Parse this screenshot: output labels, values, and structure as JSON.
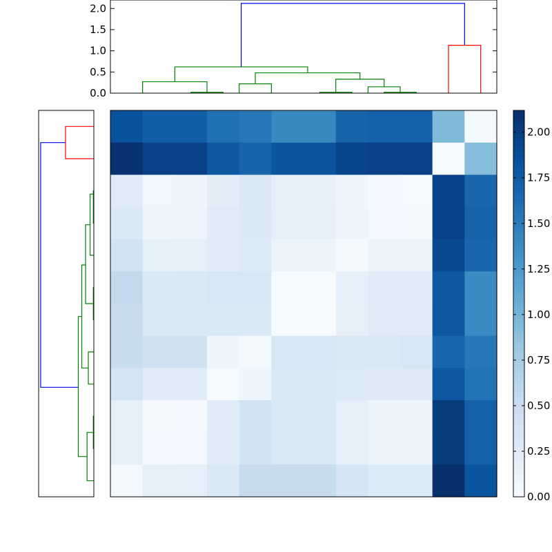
{
  "chart_data": [
    {
      "type": "heatmap",
      "title": "",
      "xlabel": "",
      "ylabel": "",
      "colormap": "Blues",
      "vmin": 0.0,
      "vmax": 2.12,
      "rows": 12,
      "cols": 12,
      "values": [
        [
          1.85,
          1.75,
          1.75,
          1.6,
          1.55,
          1.4,
          1.4,
          1.7,
          1.72,
          1.72,
          0.95,
          0.03
        ],
        [
          2.1,
          1.98,
          1.98,
          1.8,
          1.7,
          1.82,
          1.82,
          1.95,
          1.98,
          1.98,
          0.02,
          0.92
        ],
        [
          0.25,
          0.09,
          0.1,
          0.22,
          0.3,
          0.18,
          0.18,
          0.1,
          0.04,
          0.02,
          1.98,
          1.68
        ],
        [
          0.3,
          0.1,
          0.11,
          0.25,
          0.3,
          0.2,
          0.2,
          0.11,
          0.04,
          0.03,
          1.98,
          1.7
        ],
        [
          0.4,
          0.18,
          0.19,
          0.24,
          0.28,
          0.12,
          0.12,
          0.03,
          0.12,
          0.12,
          1.92,
          1.68
        ],
        [
          0.55,
          0.3,
          0.31,
          0.34,
          0.33,
          0.02,
          0.02,
          0.18,
          0.24,
          0.24,
          1.8,
          1.38
        ],
        [
          0.52,
          0.31,
          0.32,
          0.32,
          0.3,
          0.02,
          0.02,
          0.19,
          0.25,
          0.25,
          1.8,
          1.38
        ],
        [
          0.52,
          0.42,
          0.42,
          0.1,
          0.03,
          0.34,
          0.34,
          0.3,
          0.32,
          0.34,
          1.68,
          1.55
        ],
        [
          0.38,
          0.24,
          0.24,
          0.02,
          0.1,
          0.32,
          0.32,
          0.28,
          0.26,
          0.26,
          1.8,
          1.58
        ],
        [
          0.2,
          0.03,
          0.04,
          0.24,
          0.4,
          0.32,
          0.32,
          0.2,
          0.12,
          0.12,
          2.02,
          1.72
        ],
        [
          0.2,
          0.04,
          0.05,
          0.24,
          0.4,
          0.32,
          0.32,
          0.2,
          0.12,
          0.12,
          2.02,
          1.72
        ],
        [
          0.03,
          0.2,
          0.2,
          0.3,
          0.52,
          0.52,
          0.52,
          0.38,
          0.28,
          0.28,
          2.12,
          1.82
        ]
      ]
    },
    {
      "type": "dendrogram",
      "orientation": "top",
      "ylim": [
        0.0,
        2.2
      ],
      "yticks": [
        0.0,
        0.5,
        1.0,
        1.5,
        2.0
      ],
      "ytick_labels": [
        "0.0",
        "0.5",
        "1.0",
        "1.5",
        "2.0"
      ],
      "leaf_count": 12,
      "links": [
        {
          "xs": [
            2.5,
            2.5,
            3.5,
            3.5
          ],
          "ys": [
            0.0,
            0.02,
            0.02,
            0.0
          ],
          "color": "#008000"
        },
        {
          "xs": [
            1.0,
            1.0,
            3.0,
            3.0
          ],
          "ys": [
            0.0,
            0.27,
            0.27,
            0.0
          ],
          "color": "#008000"
        },
        {
          "xs": [
            4.0,
            4.0,
            5.0,
            5.0
          ],
          "ys": [
            0.0,
            0.22,
            0.22,
            0.0
          ],
          "color": "#008000"
        },
        {
          "xs": [
            6.5,
            6.5,
            7.5,
            7.5
          ],
          "ys": [
            0.0,
            0.02,
            0.02,
            0.0
          ],
          "color": "#008000"
        },
        {
          "xs": [
            8.5,
            8.5,
            9.5,
            9.5
          ],
          "ys": [
            0.0,
            0.02,
            0.02,
            0.0
          ],
          "color": "#008000"
        },
        {
          "xs": [
            8.0,
            8.0,
            9.0,
            9.0
          ],
          "ys": [
            0.0,
            0.15,
            0.15,
            0.02
          ],
          "color": "#008000"
        },
        {
          "xs": [
            7.0,
            7.0,
            8.5,
            8.5
          ],
          "ys": [
            0.02,
            0.33,
            0.33,
            0.15
          ],
          "color": "#008000"
        },
        {
          "xs": [
            4.5,
            4.5,
            7.75,
            7.75
          ],
          "ys": [
            0.22,
            0.48,
            0.48,
            0.33
          ],
          "color": "#008000"
        },
        {
          "xs": [
            2.0,
            2.0,
            6.125,
            6.125
          ],
          "ys": [
            0.27,
            0.62,
            0.62,
            0.48
          ],
          "color": "#008000"
        },
        {
          "xs": [
            10.5,
            10.5,
            11.5,
            11.5
          ],
          "ys": [
            0.0,
            1.13,
            1.13,
            0.0
          ],
          "color": "#ff0000"
        },
        {
          "xs": [
            4.0625,
            4.0625,
            11.0,
            11.0
          ],
          "ys": [
            0.62,
            2.12,
            2.12,
            1.13
          ],
          "color": "#0000ff"
        }
      ]
    },
    {
      "type": "dendrogram",
      "orientation": "left",
      "xlim": [
        2.2,
        0.0
      ],
      "leaf_count": 12,
      "links": [
        {
          "ys": [
            0.5,
            0.5,
            1.5,
            1.5
          ],
          "xs": [
            0.0,
            1.13,
            1.13,
            0.0
          ],
          "color": "#ff0000"
        },
        {
          "ys": [
            2.5,
            2.5,
            3.5,
            3.5
          ],
          "xs": [
            0.0,
            0.02,
            0.02,
            0.0
          ],
          "color": "#008000"
        },
        {
          "ys": [
            2.6,
            2.6,
            4.5,
            4.5
          ],
          "xs": [
            0.02,
            0.15,
            0.15,
            0.0
          ],
          "color": "#008000"
        },
        {
          "ys": [
            5.5,
            5.5,
            6.5,
            6.5
          ],
          "xs": [
            0.0,
            0.02,
            0.02,
            0.0
          ],
          "color": "#008000"
        },
        {
          "ys": [
            3.55,
            3.55,
            6.0,
            6.0
          ],
          "xs": [
            0.15,
            0.33,
            0.33,
            0.02
          ],
          "color": "#008000"
        },
        {
          "ys": [
            7.5,
            7.5,
            8.5,
            8.5
          ],
          "xs": [
            0.0,
            0.22,
            0.22,
            0.0
          ],
          "color": "#008000"
        },
        {
          "ys": [
            4.8,
            4.8,
            8.0,
            8.0
          ],
          "xs": [
            0.33,
            0.48,
            0.48,
            0.22
          ],
          "color": "#008000"
        },
        {
          "ys": [
            9.5,
            9.5,
            10.5,
            10.5
          ],
          "xs": [
            0.0,
            0.02,
            0.02,
            0.0
          ],
          "color": "#008000"
        },
        {
          "ys": [
            10.0,
            10.0,
            11.5,
            11.5
          ],
          "xs": [
            0.02,
            0.27,
            0.27,
            0.0
          ],
          "color": "#008000"
        },
        {
          "ys": [
            6.4,
            6.4,
            10.75,
            10.75
          ],
          "xs": [
            0.48,
            0.62,
            0.62,
            0.27
          ],
          "color": "#008000"
        },
        {
          "ys": [
            1.0,
            1.0,
            8.6,
            8.6
          ],
          "xs": [
            1.13,
            2.12,
            2.12,
            0.62
          ],
          "color": "#0000ff"
        }
      ]
    },
    {
      "type": "colorbar",
      "vmin": 0.0,
      "vmax": 2.12,
      "ticks": [
        0.0,
        0.25,
        0.5,
        0.75,
        1.0,
        1.25,
        1.5,
        1.75,
        2.0
      ],
      "tick_labels": [
        "0.00",
        "0.25",
        "0.50",
        "0.75",
        "1.00",
        "1.25",
        "1.50",
        "1.75",
        "2.00"
      ]
    }
  ]
}
